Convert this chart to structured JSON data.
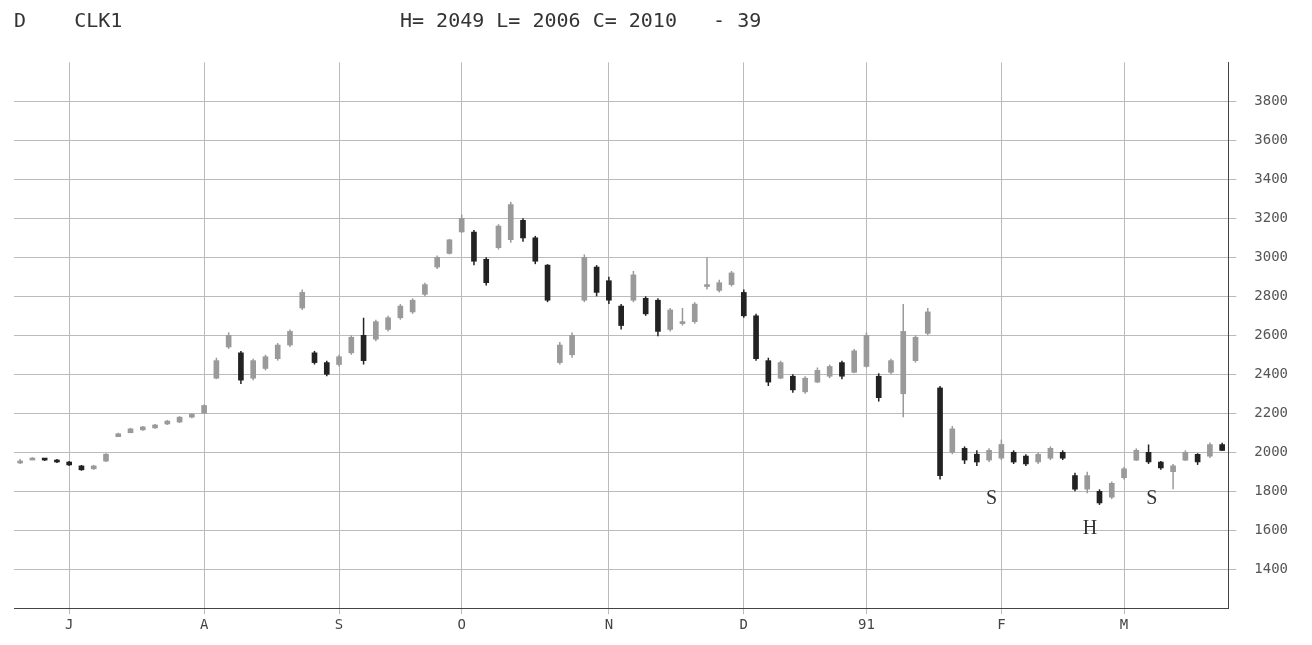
{
  "chart_data": {
    "type": "candlestick",
    "title": "D    CLK1",
    "subtitle": "H= 2049 L= 2006 C= 2010   - 39",
    "categories": [
      null,
      null,
      null,
      null,
      "J",
      null,
      null,
      null,
      null,
      null,
      null,
      null,
      null,
      null,
      null,
      "A",
      null,
      null,
      null,
      null,
      null,
      null,
      null,
      null,
      null,
      null,
      "S",
      null,
      null,
      null,
      null,
      null,
      null,
      null,
      null,
      null,
      "O",
      null,
      null,
      null,
      null,
      null,
      null,
      null,
      null,
      null,
      null,
      null,
      "N",
      null,
      null,
      null,
      null,
      null,
      null,
      null,
      null,
      null,
      null,
      "D",
      null,
      null,
      null,
      null,
      null,
      null,
      null,
      null,
      null,
      "91",
      null,
      null,
      null,
      null,
      null,
      null,
      null,
      null,
      null,
      null,
      "F",
      null,
      null,
      null,
      null,
      null,
      null,
      null,
      null,
      null,
      "M",
      null,
      null,
      null,
      null,
      null,
      null,
      null,
      null
    ],
    "ohlc": [
      [
        1945,
        1965,
        1940,
        1955
      ],
      [
        1960,
        1975,
        1960,
        1970
      ],
      [
        1965,
        1970,
        1955,
        1960
      ],
      [
        1960,
        1965,
        1945,
        1950
      ],
      [
        1950,
        1955,
        1930,
        1935
      ],
      [
        1930,
        1935,
        1905,
        1910
      ],
      [
        1915,
        1935,
        1910,
        1930
      ],
      [
        1955,
        1995,
        1950,
        1990
      ],
      [
        2080,
        2100,
        2080,
        2095
      ],
      [
        2100,
        2125,
        2100,
        2120
      ],
      [
        2115,
        2135,
        2110,
        2130
      ],
      [
        2125,
        2145,
        2120,
        2140
      ],
      [
        2145,
        2165,
        2140,
        2160
      ],
      [
        2155,
        2185,
        2150,
        2180
      ],
      [
        2180,
        2200,
        2175,
        2195
      ],
      [
        2200,
        2245,
        2200,
        2240
      ],
      [
        2380,
        2485,
        2375,
        2470
      ],
      [
        2540,
        2615,
        2530,
        2600
      ],
      [
        2510,
        2520,
        2350,
        2370
      ],
      [
        2380,
        2480,
        2370,
        2470
      ],
      [
        2430,
        2500,
        2420,
        2490
      ],
      [
        2480,
        2560,
        2470,
        2550
      ],
      [
        2550,
        2630,
        2540,
        2620
      ],
      [
        2740,
        2835,
        2730,
        2820
      ],
      [
        2510,
        2520,
        2450,
        2460
      ],
      [
        2460,
        2470,
        2390,
        2400
      ],
      [
        2450,
        2500,
        2440,
        2490
      ],
      [
        2510,
        2600,
        2500,
        2590
      ],
      [
        2600,
        2690,
        2450,
        2470
      ],
      [
        2580,
        2680,
        2570,
        2670
      ],
      [
        2630,
        2700,
        2620,
        2690
      ],
      [
        2690,
        2760,
        2680,
        2750
      ],
      [
        2720,
        2790,
        2710,
        2780
      ],
      [
        2810,
        2870,
        2800,
        2860
      ],
      [
        2950,
        3010,
        2940,
        3000
      ],
      [
        3020,
        3095,
        3015,
        3090
      ],
      [
        3130,
        3220,
        3125,
        3200
      ],
      [
        3130,
        3140,
        2960,
        2980
      ],
      [
        2990,
        3000,
        2855,
        2870
      ],
      [
        3050,
        3170,
        3040,
        3160
      ],
      [
        3090,
        3285,
        3075,
        3270
      ],
      [
        3190,
        3200,
        3080,
        3100
      ],
      [
        3100,
        3110,
        2965,
        2980
      ],
      [
        2960,
        2965,
        2770,
        2780
      ],
      [
        2460,
        2565,
        2450,
        2550
      ],
      [
        2500,
        2615,
        2485,
        2600
      ],
      [
        2780,
        3015,
        2770,
        3000
      ],
      [
        2950,
        2960,
        2800,
        2820
      ],
      [
        2880,
        2900,
        2760,
        2780
      ],
      [
        2750,
        2760,
        2630,
        2650
      ],
      [
        2780,
        2930,
        2770,
        2910
      ],
      [
        2790,
        2800,
        2700,
        2710
      ],
      [
        2780,
        2790,
        2595,
        2620
      ],
      [
        2630,
        2740,
        2620,
        2730
      ],
      [
        2660,
        2740,
        2650,
        2670
      ],
      [
        2670,
        2770,
        2660,
        2760
      ],
      [
        2850,
        3000,
        2835,
        2860
      ],
      [
        2830,
        2885,
        2820,
        2870
      ],
      [
        2860,
        2930,
        2850,
        2920
      ],
      [
        2820,
        2835,
        2690,
        2700
      ],
      [
        2700,
        2710,
        2470,
        2480
      ],
      [
        2470,
        2485,
        2340,
        2360
      ],
      [
        2380,
        2470,
        2375,
        2460
      ],
      [
        2390,
        2400,
        2305,
        2320
      ],
      [
        2310,
        2390,
        2300,
        2380
      ],
      [
        2360,
        2435,
        2355,
        2420
      ],
      [
        2390,
        2450,
        2380,
        2440
      ],
      [
        2460,
        2470,
        2375,
        2390
      ],
      [
        2410,
        2530,
        2405,
        2520
      ],
      [
        2440,
        2615,
        2435,
        2600
      ],
      [
        2390,
        2405,
        2260,
        2280
      ],
      [
        2410,
        2480,
        2400,
        2470
      ],
      [
        2300,
        2760,
        2180,
        2620
      ],
      [
        2470,
        2600,
        2460,
        2590
      ],
      [
        2610,
        2740,
        2600,
        2720
      ],
      [
        2330,
        2340,
        1860,
        1880
      ],
      [
        2000,
        2135,
        1990,
        2120
      ],
      [
        2020,
        2030,
        1940,
        1960
      ],
      [
        1990,
        2010,
        1930,
        1950
      ],
      [
        1960,
        2020,
        1950,
        2010
      ],
      [
        1970,
        2065,
        1960,
        2040
      ],
      [
        2000,
        2010,
        1940,
        1950
      ],
      [
        1980,
        1990,
        1930,
        1940
      ],
      [
        1950,
        2000,
        1940,
        1990
      ],
      [
        1970,
        2030,
        1960,
        2020
      ],
      [
        2000,
        2010,
        1960,
        1970
      ],
      [
        1880,
        1895,
        1800,
        1810
      ],
      [
        1810,
        1900,
        1790,
        1880
      ],
      [
        1800,
        1810,
        1730,
        1740
      ],
      [
        1770,
        1850,
        1760,
        1840
      ],
      [
        1870,
        1925,
        1860,
        1915
      ],
      [
        1960,
        2020,
        1955,
        2010
      ],
      [
        2000,
        2040,
        1940,
        1950
      ],
      [
        1950,
        1955,
        1910,
        1920
      ],
      [
        1900,
        1940,
        1810,
        1930
      ],
      [
        1960,
        2010,
        1955,
        2000
      ],
      [
        1990,
        1995,
        1935,
        1950
      ],
      [
        1980,
        2050,
        1970,
        2040
      ],
      [
        2040,
        2049,
        2006,
        2010
      ]
    ],
    "ylim": [
      1200,
      4000
    ],
    "yticks": [
      1400,
      1600,
      1800,
      2000,
      2200,
      2400,
      2600,
      2800,
      3000,
      3200,
      3400,
      3600,
      3800
    ],
    "colors": [
      "#9a9a9a",
      "#9a9a9a",
      "#222222",
      "#222222",
      "#222222",
      "#222222",
      "#9a9a9a",
      "#9a9a9a",
      "#9a9a9a",
      "#9a9a9a",
      "#9a9a9a",
      "#9a9a9a",
      "#9a9a9a",
      "#9a9a9a",
      "#9a9a9a",
      "#9a9a9a",
      "#9a9a9a",
      "#9a9a9a",
      "#222222",
      "#9a9a9a",
      "#9a9a9a",
      "#9a9a9a",
      "#9a9a9a",
      "#9a9a9a",
      "#222222",
      "#222222",
      "#9a9a9a",
      "#9a9a9a",
      "#222222",
      "#9a9a9a",
      "#9a9a9a",
      "#9a9a9a",
      "#9a9a9a",
      "#9a9a9a",
      "#9a9a9a",
      "#9a9a9a",
      "#9a9a9a",
      "#222222",
      "#222222",
      "#9a9a9a",
      "#9a9a9a",
      "#222222",
      "#222222",
      "#222222",
      "#9a9a9a",
      "#9a9a9a",
      "#9a9a9a",
      "#222222",
      "#222222",
      "#222222",
      "#9a9a9a",
      "#222222",
      "#222222",
      "#9a9a9a",
      "#9a9a9a",
      "#9a9a9a",
      "#9a9a9a",
      "#9a9a9a",
      "#9a9a9a",
      "#222222",
      "#222222",
      "#222222",
      "#9a9a9a",
      "#222222",
      "#9a9a9a",
      "#9a9a9a",
      "#9a9a9a",
      "#222222",
      "#9a9a9a",
      "#9a9a9a",
      "#222222",
      "#9a9a9a",
      "#9a9a9a",
      "#9a9a9a",
      "#9a9a9a",
      "#222222",
      "#9a9a9a",
      "#222222",
      "#222222",
      "#9a9a9a",
      "#9a9a9a",
      "#222222",
      "#222222",
      "#9a9a9a",
      "#9a9a9a",
      "#222222",
      "#222222",
      "#9a9a9a",
      "#222222",
      "#9a9a9a",
      "#9a9a9a",
      "#9a9a9a",
      "#222222",
      "#222222",
      "#9a9a9a",
      "#9a9a9a",
      "#222222",
      "#9a9a9a",
      "#222222"
    ],
    "grid": true,
    "annotations": [
      "S",
      "H",
      "S"
    ]
  }
}
